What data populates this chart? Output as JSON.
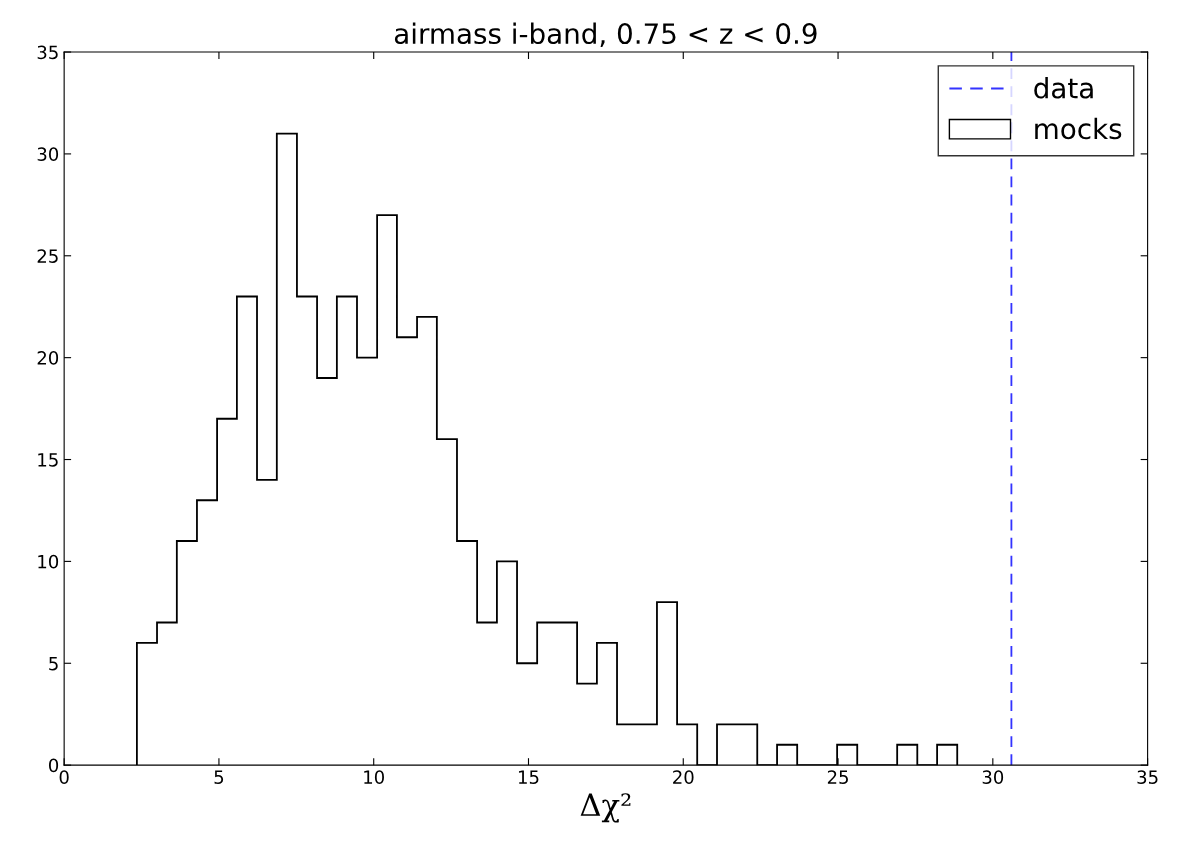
{
  "chart_data": {
    "type": "histogram",
    "title": "airmass i-band, 0.75 < z < 0.9",
    "xlabel": "Δχ²",
    "bins": [
      2.35,
      3.0,
      3.64,
      4.29,
      4.94,
      5.58,
      6.23,
      6.87,
      7.52,
      8.17,
      8.81,
      9.46,
      10.11,
      10.75,
      11.4,
      12.04,
      12.69,
      13.34,
      13.98,
      14.63,
      15.28,
      15.92,
      16.57,
      17.21,
      17.86,
      18.51,
      19.15,
      19.8,
      20.45,
      21.09,
      21.74,
      22.39,
      23.03,
      23.68,
      24.32,
      24.97,
      25.62,
      26.26,
      26.91,
      27.56,
      28.2,
      28.85
    ],
    "series": [
      {
        "name": "mocks",
        "color": "#000000",
        "values": [
          6,
          7,
          11,
          13,
          17,
          23,
          14,
          31,
          23,
          19,
          23,
          20,
          27,
          21,
          22,
          16,
          11,
          7,
          10,
          5,
          7,
          7,
          4,
          6,
          2,
          2,
          8,
          2,
          0,
          2,
          2,
          0,
          1,
          0,
          0,
          1,
          0,
          0,
          1,
          0,
          1
        ]
      }
    ],
    "ref_lines": [
      {
        "axis": "x",
        "value": 30.6,
        "label": "data",
        "color": "#3333ff",
        "line_style": "dashed"
      }
    ],
    "xlim": [
      0,
      35
    ],
    "xticks": [
      0,
      5,
      10,
      15,
      20,
      25,
      30,
      35
    ],
    "ylim": [
      0,
      35
    ],
    "yticks": [
      0,
      5,
      10,
      15,
      20,
      25,
      30,
      35
    ],
    "grid": false,
    "legend": "top right"
  }
}
